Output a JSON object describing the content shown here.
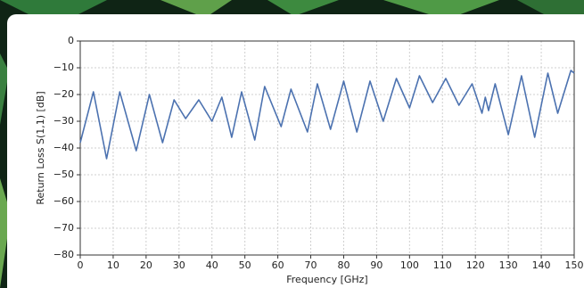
{
  "chart_data": {
    "type": "line",
    "xlabel": "Frequency [GHz]",
    "ylabel": "Return Loss S(1,1) [dB]",
    "x": [
      0,
      4,
      8,
      12,
      17,
      21,
      25,
      28.5,
      32,
      36,
      40,
      43,
      46,
      49,
      53,
      56,
      61,
      64,
      69,
      72,
      76,
      80,
      84,
      88,
      92,
      96,
      100,
      103,
      107,
      111,
      115,
      119,
      122,
      123,
      124,
      126,
      130,
      134,
      138,
      142,
      145,
      149,
      150
    ],
    "values": [
      -38,
      -19,
      -44,
      -19,
      -41,
      -20,
      -38,
      -22,
      -29,
      -22,
      -30,
      -21,
      -36,
      -19,
      -37,
      -17,
      -32,
      -18,
      -34,
      -16,
      -33,
      -15,
      -34,
      -15,
      -30,
      -14,
      -25,
      -13,
      -23,
      -14,
      -24,
      -16,
      -27,
      -21,
      -26,
      -16,
      -35,
      -13,
      -36,
      -12,
      -27,
      -11,
      -12
    ],
    "color": "#4c72b0",
    "xlim": [
      0,
      150
    ],
    "ylim": [
      -80,
      0
    ],
    "xticks": [
      0,
      10,
      20,
      30,
      40,
      50,
      60,
      70,
      80,
      90,
      100,
      110,
      120,
      130,
      140,
      150
    ],
    "yticks": [
      0,
      {
        "value": -10,
        "label": "−10"
      },
      {
        "value": -20,
        "label": "−20"
      },
      {
        "value": -30,
        "label": "−30"
      },
      {
        "value": -40,
        "label": "−40"
      },
      {
        "value": -50,
        "label": "−50"
      },
      {
        "value": -60,
        "label": "−60"
      },
      {
        "value": -70,
        "label": "−70"
      },
      {
        "value": -80,
        "label": "−80"
      }
    ],
    "grid": true
  }
}
